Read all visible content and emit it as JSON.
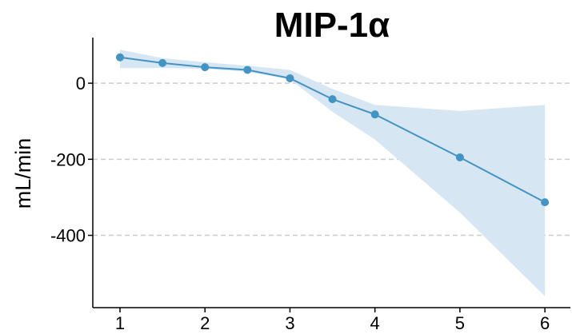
{
  "chart_data": {
    "type": "line",
    "title": "MIP-1α",
    "xlabel": "",
    "ylabel": "mL/min",
    "xlim": [
      0.68,
      6.3
    ],
    "ylim": [
      -590,
      120
    ],
    "x_ticks": [
      1,
      2,
      3,
      4,
      5,
      6
    ],
    "y_ticks": [
      0,
      -200,
      -400
    ],
    "grid": "horizontal dashed at y ticks",
    "colors": {
      "line": "#4393c3",
      "band": "#d6e6f3",
      "grid": "#cccccc",
      "axis": "#000000"
    },
    "series": [
      {
        "x": [
          1,
          1.5,
          2,
          2.5,
          3,
          3.5,
          4,
          5,
          6
        ],
        "y": [
          68,
          53,
          42,
          35,
          13,
          -42,
          -82,
          -195,
          -313
        ],
        "lower": [
          40,
          40,
          38,
          30,
          10,
          -75,
          -148,
          -340,
          -560
        ],
        "upper": [
          88,
          66,
          55,
          46,
          35,
          -15,
          -57,
          -73,
          -57
        ]
      }
    ]
  }
}
